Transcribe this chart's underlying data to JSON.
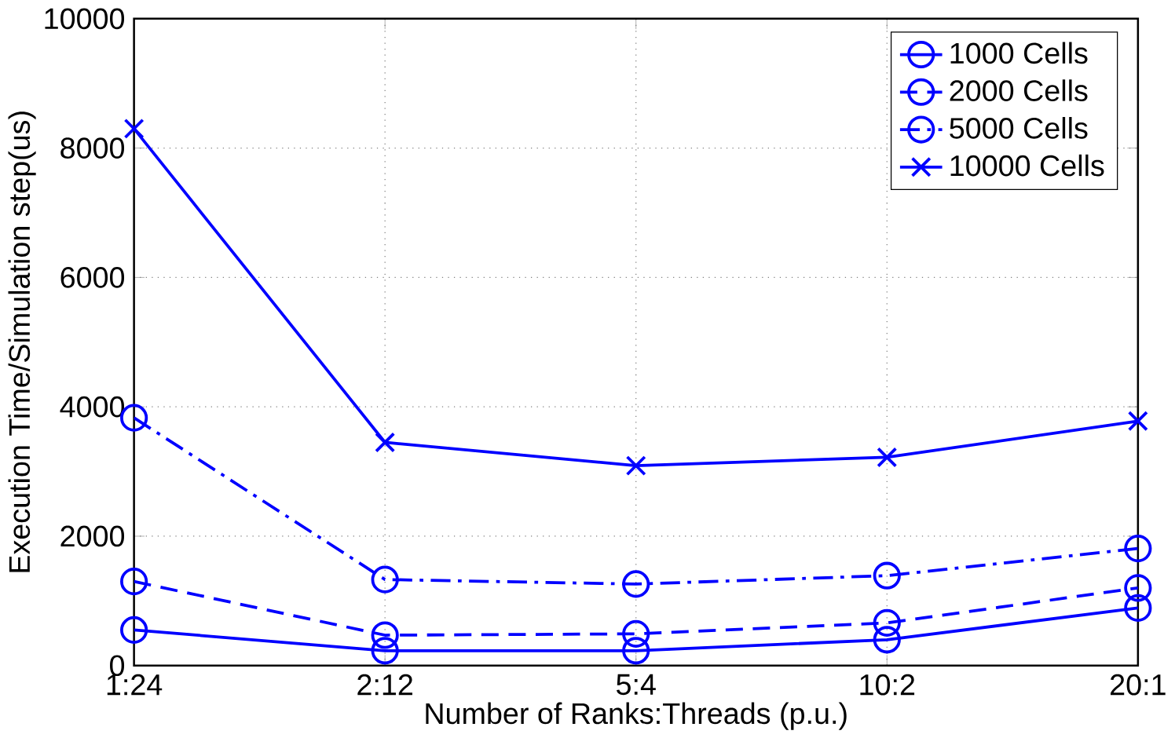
{
  "chart_data": {
    "type": "line",
    "xlabel": "Number of Ranks:Threads (p.u.)",
    "ylabel": "Execution Time/Simulation step(us)",
    "categories": [
      "1:24",
      "2:12",
      "5:4",
      "10:2",
      "20:1"
    ],
    "ylim": [
      0,
      10000
    ],
    "yticks": [
      0,
      2000,
      4000,
      6000,
      8000,
      10000
    ],
    "grid": true,
    "legend": "top right",
    "series": [
      {
        "name": "1000 Cells",
        "color": "#0000ff",
        "marker": "circle",
        "line_style": "solid",
        "values": [
          550,
          230,
          230,
          400,
          890
        ]
      },
      {
        "name": "2000 Cells",
        "color": "#0000ff",
        "marker": "circle",
        "line_style": "dashed",
        "values": [
          1300,
          470,
          490,
          660,
          1200
        ]
      },
      {
        "name": "5000 Cells",
        "color": "#0000ff",
        "marker": "circle",
        "line_style": "dashdot",
        "values": [
          3830,
          1330,
          1260,
          1390,
          1810
        ]
      },
      {
        "name": "10000 Cells",
        "color": "#0000ff",
        "marker": "cross",
        "line_style": "solid",
        "values": [
          8300,
          3450,
          3090,
          3220,
          3780
        ]
      }
    ]
  }
}
